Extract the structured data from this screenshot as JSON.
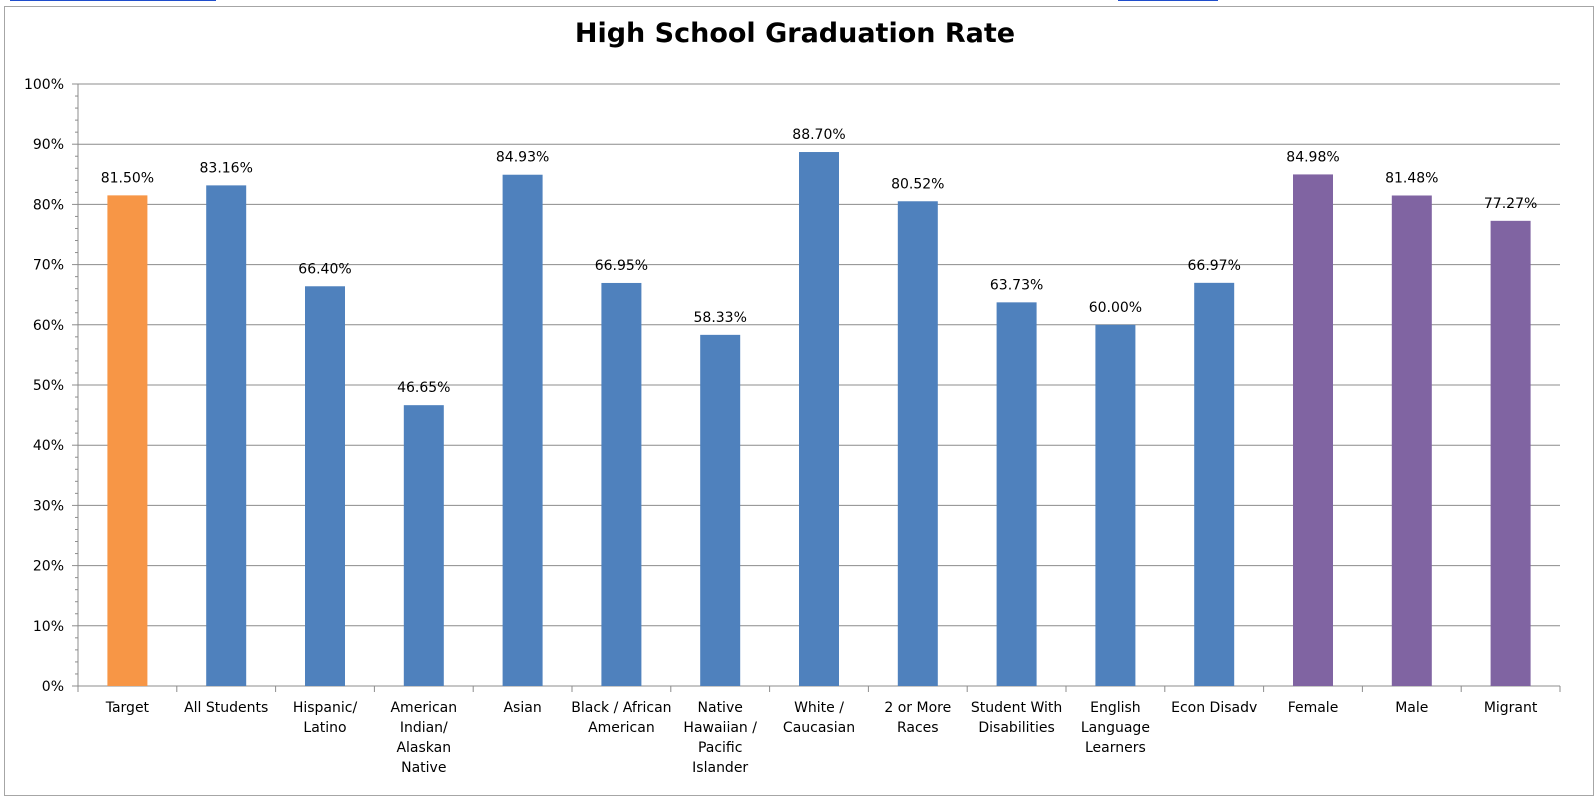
{
  "chart_data": {
    "type": "bar",
    "title": "High School Graduation Rate",
    "xlabel": "",
    "ylabel": "",
    "ylim": [
      0,
      100
    ],
    "yticks": [
      "0%",
      "10%",
      "20%",
      "30%",
      "40%",
      "50%",
      "60%",
      "70%",
      "80%",
      "90%",
      "100%"
    ],
    "grid": true,
    "categories": [
      "Target",
      "All Students",
      "Hispanic/ Latino",
      "American Indian/ Alaskan Native",
      "Asian",
      "Black / African American",
      "Native Hawaiian / Pacific Islander",
      "White / Caucasian",
      "2 or More Races",
      "Student With Disabilities",
      "English Language Learners",
      "Econ Disadv",
      "Female",
      "Male",
      "Migrant"
    ],
    "category_lines": [
      [
        "Target"
      ],
      [
        "All Students"
      ],
      [
        "Hispanic/",
        "Latino"
      ],
      [
        "American",
        "Indian/",
        "Alaskan",
        "Native"
      ],
      [
        "Asian"
      ],
      [
        "Black / African",
        "American"
      ],
      [
        "Native",
        "Hawaiian /",
        "Pacific",
        "Islander"
      ],
      [
        "White /",
        "Caucasian"
      ],
      [
        "2 or More",
        "Races"
      ],
      [
        "Student With",
        "Disabilities"
      ],
      [
        "English",
        "Language",
        "Learners"
      ],
      [
        "Econ Disadv"
      ],
      [
        "Female"
      ],
      [
        "Male"
      ],
      [
        "Migrant"
      ]
    ],
    "values": [
      81.5,
      83.16,
      66.4,
      46.65,
      84.93,
      66.95,
      58.33,
      88.7,
      80.52,
      63.73,
      60.0,
      66.97,
      84.98,
      81.48,
      77.27
    ],
    "data_labels": [
      "81.50%",
      "83.16%",
      "66.40%",
      "46.65%",
      "84.93%",
      "66.95%",
      "58.33%",
      "88.70%",
      "80.52%",
      "63.73%",
      "60.00%",
      "66.97%",
      "84.98%",
      "81.48%",
      "77.27%"
    ],
    "bar_colors": [
      "#f79646",
      "#4f81bd",
      "#4f81bd",
      "#4f81bd",
      "#4f81bd",
      "#4f81bd",
      "#4f81bd",
      "#4f81bd",
      "#4f81bd",
      "#4f81bd",
      "#4f81bd",
      "#4f81bd",
      "#8064a2",
      "#8064a2",
      "#8064a2"
    ]
  }
}
